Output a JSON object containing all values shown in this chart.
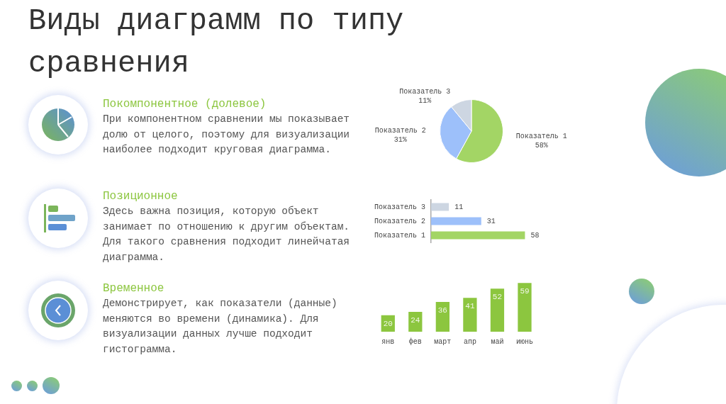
{
  "chart_data": [
    {
      "type": "other",
      "title": "Виды диаграмм по типу сравнения",
      "annotations": [
        "Покомпонентное (долевое)",
        "При компонентном сравнении мы показывает долю от целого, поэтому для визуализации наиболее подходит круговая диаграмма.",
        "Позиционное",
        "Здесь важна позиция, которую объект занимает по отношению к другим объектам. Для такого сравнения подходит линейчатая диаграмма.",
        "Временное",
        "Демонстрирует, как показатели (данные) меняются во времени (динамика). Для визуализации данных лучше подходит гистограмма."
      ]
    },
    {
      "type": "pie",
      "categories": [
        "Показатель 1",
        "Показатель 2",
        "Показатель 3"
      ],
      "values": [
        58,
        31,
        11
      ],
      "colors": [
        "#a3d565",
        "#9dc0fa",
        "#cdd6e2"
      ],
      "value_labels": [
        "58%",
        "31%",
        "11%"
      ]
    },
    {
      "type": "bar",
      "orientation": "horizontal",
      "categories": [
        "Показатель 3",
        "Показатель 2",
        "Показатель 1"
      ],
      "values": [
        11,
        31,
        58
      ],
      "colors": [
        "#cdd6e2",
        "#9dc0fa",
        "#a3d565"
      ],
      "data_labels": true,
      "tick_labels": "y"
    },
    {
      "type": "bar",
      "categories": [
        "янв",
        "фев",
        "март",
        "апр",
        "май",
        "июнь"
      ],
      "values": [
        20,
        24,
        36,
        41,
        52,
        59
      ],
      "color": "#8cc63f",
      "data_labels": true,
      "tick_labels": "x"
    }
  ]
}
